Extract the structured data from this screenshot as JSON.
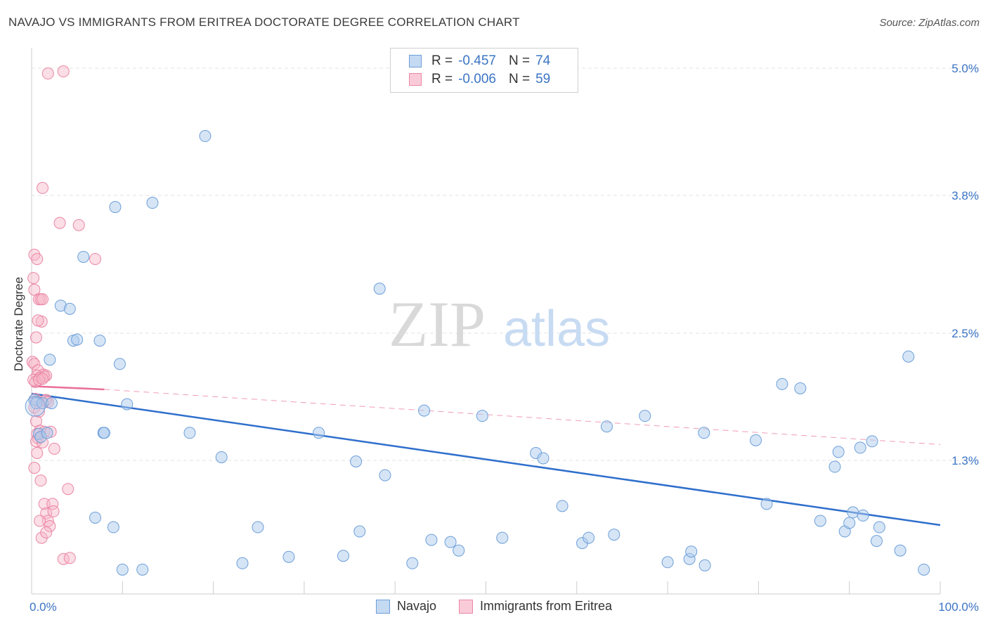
{
  "title": "NAVAJO VS IMMIGRANTS FROM ERITREA DOCTORATE DEGREE CORRELATION CHART",
  "source": "Source: ZipAtlas.com",
  "watermark": {
    "zip": "ZIP",
    "atlas": "atlas"
  },
  "colors": {
    "navajo_fill": "#aecbee",
    "navajo_stroke": "#6d9fd8",
    "navajo_line": "#2f6fcc",
    "eritrea_fill": "#f6b6c8",
    "eritrea_stroke": "#ea87a5",
    "eritrea_line": "#e9719a",
    "axis_text": "#3b74c4"
  },
  "legend": {
    "rows": [
      {
        "key": "R =",
        "r": "-0.457",
        "nkey": "N =",
        "n": "74"
      },
      {
        "key": "R =",
        "r": "-0.006",
        "nkey": "N =",
        "n": "59"
      }
    ]
  },
  "bottom_legend": {
    "navajo": "Navajo",
    "eritrea": "Immigrants from Eritrea"
  },
  "chart_data": {
    "type": "scatter",
    "title": "NAVAJO VS IMMIGRANTS FROM ERITREA DOCTORATE DEGREE CORRELATION CHART",
    "xlabel": "",
    "ylabel": "Doctorate Degree",
    "xlim": [
      0,
      100
    ],
    "ylim": [
      0.1,
      5.1
    ],
    "x_tick_labels": [
      "0.0%",
      "100.0%"
    ],
    "y_ticks": [
      {
        "value": 1.3,
        "label": "1.3%"
      },
      {
        "value": 2.5,
        "label": "2.5%"
      },
      {
        "value": 3.8,
        "label": "3.8%"
      },
      {
        "value": 5.0,
        "label": "5.0%"
      }
    ],
    "grid": "horizontal dashed",
    "series": [
      {
        "name": "Navajo",
        "R": -0.457,
        "N": 74,
        "trend": {
          "x": [
            0,
            100
          ],
          "y": [
            1.93,
            0.69
          ]
        },
        "points": [
          [
            0.3,
            1.87
          ],
          [
            0.5,
            1.84
          ],
          [
            0.8,
            1.55
          ],
          [
            1.0,
            1.52
          ],
          [
            1.7,
            1.56
          ],
          [
            1.2,
            1.84
          ],
          [
            2.2,
            1.84
          ],
          [
            2.0,
            2.25
          ],
          [
            3.2,
            2.76
          ],
          [
            4.2,
            2.73
          ],
          [
            4.6,
            2.43
          ],
          [
            5.0,
            2.44
          ],
          [
            5.7,
            3.22
          ],
          [
            7.0,
            0.76
          ],
          [
            7.5,
            2.43
          ],
          [
            9.2,
            3.69
          ],
          [
            9.7,
            2.21
          ],
          [
            7.9,
            1.56
          ],
          [
            9.0,
            0.67
          ],
          [
            8.0,
            1.56
          ],
          [
            10.0,
            0.27
          ],
          [
            10.5,
            1.83
          ],
          [
            12.2,
            0.27
          ],
          [
            13.3,
            3.73
          ],
          [
            17.4,
            1.56
          ],
          [
            19.1,
            4.36
          ],
          [
            20.9,
            1.33
          ],
          [
            23.2,
            0.33
          ],
          [
            24.9,
            0.67
          ],
          [
            28.3,
            0.39
          ],
          [
            31.6,
            1.56
          ],
          [
            34.3,
            0.4
          ],
          [
            35.7,
            1.29
          ],
          [
            36.1,
            0.63
          ],
          [
            38.3,
            2.92
          ],
          [
            38.9,
            1.16
          ],
          [
            41.9,
            0.33
          ],
          [
            43.2,
            1.77
          ],
          [
            44.0,
            0.55
          ],
          [
            46.1,
            0.53
          ],
          [
            47.0,
            0.45
          ],
          [
            49.6,
            1.72
          ],
          [
            51.8,
            0.57
          ],
          [
            55.5,
            1.37
          ],
          [
            56.3,
            1.32
          ],
          [
            58.4,
            0.87
          ],
          [
            60.6,
            0.52
          ],
          [
            61.3,
            0.57
          ],
          [
            63.3,
            1.62
          ],
          [
            64.1,
            0.6
          ],
          [
            67.5,
            1.72
          ],
          [
            70.0,
            0.34
          ],
          [
            72.4,
            0.37
          ],
          [
            72.6,
            0.44
          ],
          [
            74.0,
            1.56
          ],
          [
            74.1,
            0.31
          ],
          [
            79.7,
            1.49
          ],
          [
            80.9,
            0.89
          ],
          [
            82.6,
            2.02
          ],
          [
            84.6,
            1.98
          ],
          [
            86.8,
            0.73
          ],
          [
            88.4,
            1.24
          ],
          [
            88.8,
            1.38
          ],
          [
            89.5,
            0.63
          ],
          [
            90.0,
            0.71
          ],
          [
            90.4,
            0.81
          ],
          [
            91.2,
            1.42
          ],
          [
            91.5,
            0.78
          ],
          [
            92.5,
            1.48
          ],
          [
            93.0,
            0.54
          ],
          [
            93.3,
            0.67
          ],
          [
            95.6,
            0.45
          ],
          [
            96.5,
            2.28
          ],
          [
            98.2,
            0.27
          ]
        ]
      },
      {
        "name": "Immigrants from Eritrea",
        "R": -0.006,
        "N": 59,
        "trend": {
          "x": [
            0,
            8
          ],
          "y": [
            2.0,
            1.97
          ],
          "dashed_extension": {
            "x": [
              8,
              100
            ],
            "y": [
              1.97,
              1.45
            ]
          }
        },
        "points": [
          [
            1.8,
            4.95
          ],
          [
            3.5,
            4.97
          ],
          [
            1.2,
            3.87
          ],
          [
            3.1,
            3.54
          ],
          [
            5.2,
            3.52
          ],
          [
            0.3,
            3.24
          ],
          [
            0.6,
            3.2
          ],
          [
            7.0,
            3.2
          ],
          [
            0.2,
            3.02
          ],
          [
            0.3,
            2.91
          ],
          [
            0.8,
            2.82
          ],
          [
            1.0,
            2.82
          ],
          [
            1.2,
            2.82
          ],
          [
            1.1,
            2.61
          ],
          [
            0.7,
            2.62
          ],
          [
            0.5,
            2.46
          ],
          [
            0.1,
            2.23
          ],
          [
            0.3,
            2.21
          ],
          [
            0.7,
            2.15
          ],
          [
            1.3,
            2.11
          ],
          [
            0.6,
            2.1
          ],
          [
            1.6,
            2.1
          ],
          [
            0.2,
            2.06
          ],
          [
            0.9,
            2.08
          ],
          [
            1.4,
            2.09
          ],
          [
            0.4,
            2.04
          ],
          [
            0.8,
            2.06
          ],
          [
            1.2,
            2.07
          ],
          [
            0.4,
            1.88
          ],
          [
            0.6,
            1.86
          ],
          [
            1.5,
            1.86
          ],
          [
            1.6,
            1.87
          ],
          [
            1.8,
            1.85
          ],
          [
            0.3,
            1.8
          ],
          [
            0.8,
            1.76
          ],
          [
            0.5,
            1.67
          ],
          [
            0.9,
            1.58
          ],
          [
            1.4,
            1.57
          ],
          [
            0.7,
            1.51
          ],
          [
            0.6,
            1.55
          ],
          [
            0.5,
            1.48
          ],
          [
            1.2,
            1.47
          ],
          [
            2.1,
            1.57
          ],
          [
            0.6,
            1.37
          ],
          [
            2.5,
            1.41
          ],
          [
            0.3,
            1.23
          ],
          [
            1.0,
            1.11
          ],
          [
            4.0,
            1.03
          ],
          [
            1.4,
            0.89
          ],
          [
            2.3,
            0.89
          ],
          [
            1.6,
            0.8
          ],
          [
            2.4,
            0.82
          ],
          [
            1.8,
            0.73
          ],
          [
            2.0,
            0.68
          ],
          [
            0.9,
            0.73
          ],
          [
            1.1,
            0.57
          ],
          [
            1.6,
            0.62
          ],
          [
            3.5,
            0.37
          ],
          [
            4.2,
            0.38
          ]
        ]
      }
    ]
  }
}
